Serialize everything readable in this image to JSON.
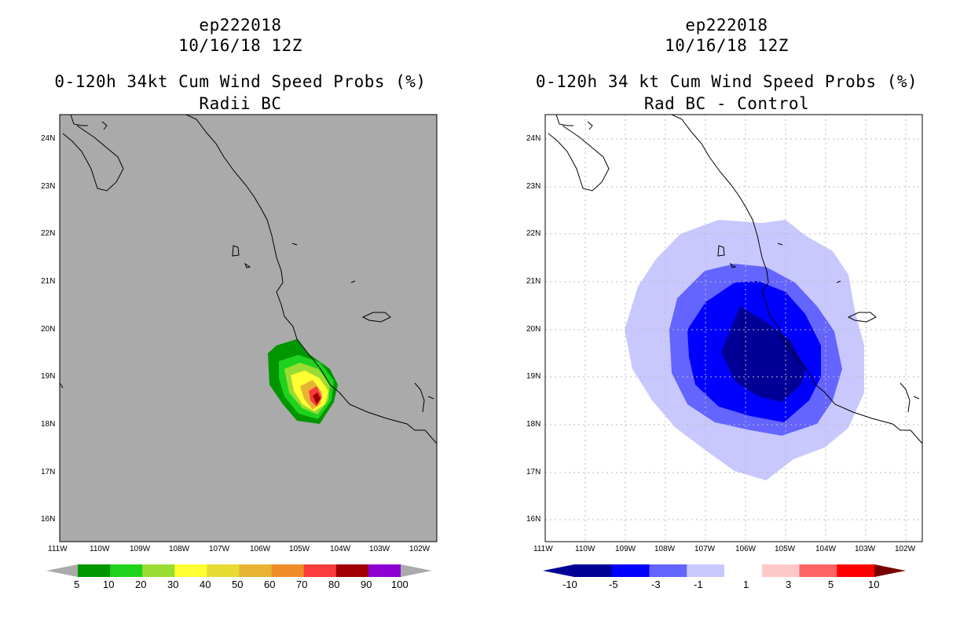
{
  "left": {
    "title1": "ep222018",
    "title2": "10/16/18 12Z",
    "title3": "0-120h 34kt Cum Wind Speed Probs (%)",
    "title4": "Radii BC",
    "colorbar_labels": [
      "5",
      "10",
      "20",
      "30",
      "40",
      "50",
      "60",
      "70",
      "80",
      "90",
      "100"
    ],
    "colorbar_colors": [
      "#009600",
      "#1ed21e",
      "#9bdc32",
      "#ffff32",
      "#e6dc32",
      "#e6b432",
      "#f08c28",
      "#fa3c3c",
      "#a00000",
      "#8c00d2"
    ],
    "background_color": "#aaaaaa"
  },
  "right": {
    "title1": "ep222018",
    "title2": "10/16/18 12Z",
    "title3": "0-120h 34 kt Cum Wind Speed Probs (%)",
    "title4": "Rad BC - Control",
    "colorbar_labels": [
      "-10",
      "-5",
      "-3",
      "-1",
      "1",
      "3",
      "5",
      "10"
    ],
    "colorbar_colors": [
      "#000096",
      "#0000ff",
      "#6464ff",
      "#c8c8ff",
      "#ffffff",
      "#ffc8c8",
      "#ff6464",
      "#ff0000"
    ],
    "background_color": "#ffffff"
  },
  "axes": {
    "lat_labels": [
      "24N",
      "23N",
      "22N",
      "21N",
      "20N",
      "19N",
      "18N",
      "17N",
      "16N"
    ],
    "lon_labels": [
      "111W",
      "110W",
      "109W",
      "108W",
      "107W",
      "106W",
      "105W",
      "104W",
      "103W",
      "102W"
    ]
  }
}
